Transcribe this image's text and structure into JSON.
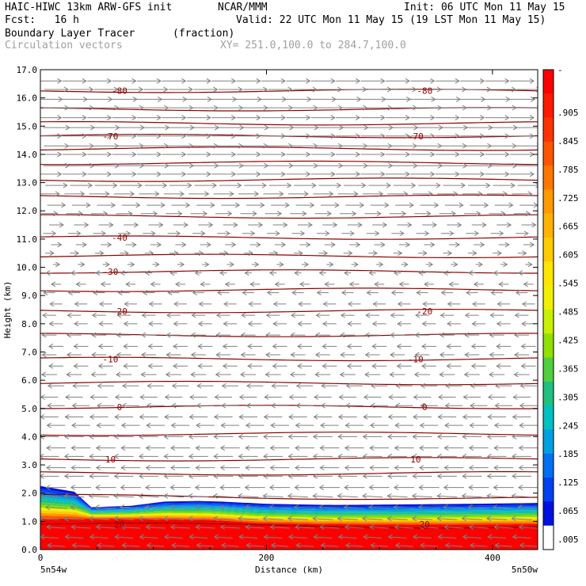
{
  "header": {
    "title": "HAIC-HIWC 13km ARW-GFS init",
    "org": "NCAR/MMM",
    "init": "Init: 06 UTC Mon 11 May 15",
    "fcst": "Fcst:   16 h",
    "valid": "Valid: 22 UTC Mon 11 May 15 (19 LST Mon 11 May 15)",
    "field": "Boundary Layer Tracer",
    "units": "(fraction)",
    "vectors": "Circulation vectors",
    "xy": "XY= 251.0,100.0 to 284.7,100.0"
  },
  "chart_data": {
    "type": "heatmap",
    "title": "Boundary Layer Tracer",
    "xlabel": "Distance (km)",
    "ylabel": "Height (km)",
    "xlim": [
      0,
      440
    ],
    "ylim": [
      0,
      17
    ],
    "x_ticks": [
      "0",
      "200",
      "400"
    ],
    "y_ticks": [
      "0.0",
      "1.0",
      "2.0",
      "3.0",
      "4.0",
      "5.0",
      "6.0",
      "7.0",
      "8.0",
      "9.0",
      "10.0",
      "11.0",
      "12.0",
      "13.0",
      "14.0",
      "15.0",
      "16.0",
      "17.0"
    ],
    "x_endpoints": {
      "left": "5n54w",
      "right": "5n50w"
    },
    "colorbar_labels": [
      "-",
      ".905",
      ".845",
      ".785",
      ".725",
      ".665",
      ".605",
      ".545",
      ".485",
      ".425",
      ".365",
      ".305",
      ".245",
      ".185",
      ".125",
      ".065",
      ".005"
    ],
    "colorbar_colors": [
      "#ff0000",
      "#ff1a00",
      "#ff3300",
      "#ff5500",
      "#ff7700",
      "#ff9900",
      "#ffb300",
      "#ffcc00",
      "#ffe600",
      "#f0f000",
      "#c8f000",
      "#90e000",
      "#50d040",
      "#20c080",
      "#00c0c0",
      "#00a0e0",
      "#0070f0",
      "#0040f0",
      "#0010e0",
      "#ffffff"
    ],
    "tracer_top_km": [
      [
        0,
        2.25
      ],
      [
        30,
        2.05
      ],
      [
        45,
        1.5
      ],
      [
        80,
        1.55
      ],
      [
        110,
        1.7
      ],
      [
        140,
        1.72
      ],
      [
        160,
        1.7
      ],
      [
        200,
        1.62
      ],
      [
        260,
        1.58
      ],
      [
        320,
        1.6
      ],
      [
        380,
        1.62
      ],
      [
        440,
        1.65
      ]
    ],
    "tracer_full_top_km": [
      [
        0,
        1.1
      ],
      [
        100,
        1.08
      ],
      [
        150,
        1.05
      ],
      [
        170,
        1.0
      ],
      [
        190,
        0.95
      ],
      [
        250,
        0.9
      ],
      [
        330,
        0.88
      ],
      [
        440,
        0.9
      ]
    ],
    "isotherm_labels": [
      {
        "value": "-80",
        "h": 16.25
      },
      {
        "value": "-70",
        "h": 14.65
      },
      {
        "value": "-40",
        "h": 11.05
      },
      {
        "value": "-30",
        "h": 9.85
      },
      {
        "value": "-20",
        "h": 8.45
      },
      {
        "value": "-10",
        "h": 6.75
      },
      {
        "value": "0",
        "h": 5.05
      },
      {
        "value": "10",
        "h": 3.2
      },
      {
        "value": "20",
        "h": 0.9
      }
    ],
    "isotherm_label_x_km": [
      70,
      340
    ],
    "contour_heights_km": [
      0.9,
      1.9,
      2.7,
      3.2,
      4.1,
      5.05,
      5.9,
      6.75,
      7.6,
      8.45,
      9.2,
      9.85,
      10.4,
      11.05,
      11.8,
      12.5,
      13.1,
      13.7,
      14.2,
      14.65,
      15.1,
      15.6,
      16.25
    ],
    "wind_rows": [
      {
        "h": 16.6,
        "u": 2.0
      },
      {
        "h": 16.3,
        "u": 2.0
      },
      {
        "h": 15.95,
        "u": 2.2
      },
      {
        "h": 15.65,
        "u": 2.1
      },
      {
        "h": 15.3,
        "u": 2.0
      },
      {
        "h": 14.95,
        "u": 2.3
      },
      {
        "h": 14.65,
        "u": 2.0
      },
      {
        "h": 14.3,
        "u": 2.1
      },
      {
        "h": 14.0,
        "u": 2.0
      },
      {
        "h": 13.6,
        "u": 2.2
      },
      {
        "h": 13.3,
        "u": 2.0
      },
      {
        "h": 12.9,
        "u": 1.8
      },
      {
        "h": 12.6,
        "u": 1.6
      },
      {
        "h": 12.2,
        "u": 1.4
      },
      {
        "h": 11.9,
        "u": 1.2
      },
      {
        "h": 11.5,
        "u": 1.0
      },
      {
        "h": 11.2,
        "u": 0.8
      },
      {
        "h": 10.8,
        "u": 0.6
      },
      {
        "h": 10.5,
        "u": 0.4
      },
      {
        "h": 10.1,
        "u": 0.2
      },
      {
        "h": 9.8,
        "u": -0.2
      },
      {
        "h": 9.4,
        "u": -0.5
      },
      {
        "h": 9.1,
        "u": -0.7
      },
      {
        "h": 8.7,
        "u": -0.8
      },
      {
        "h": 8.3,
        "u": -0.9
      },
      {
        "h": 8.0,
        "u": -0.9
      },
      {
        "h": 7.6,
        "u": -1.0
      },
      {
        "h": 7.2,
        "u": -1.0
      },
      {
        "h": 6.9,
        "u": -1.0
      },
      {
        "h": 6.5,
        "u": -1.0
      },
      {
        "h": 6.2,
        "u": -1.1
      },
      {
        "h": 5.8,
        "u": -1.2
      },
      {
        "h": 5.4,
        "u": -1.3
      },
      {
        "h": 5.1,
        "u": -1.3
      },
      {
        "h": 4.7,
        "u": -1.4
      },
      {
        "h": 4.4,
        "u": -1.4
      },
      {
        "h": 4.0,
        "u": -1.5
      },
      {
        "h": 3.6,
        "u": -1.5
      },
      {
        "h": 3.3,
        "u": -1.5
      },
      {
        "h": 2.9,
        "u": -1.5
      },
      {
        "h": 2.6,
        "u": -1.5
      },
      {
        "h": 2.2,
        "u": -1.6
      },
      {
        "h": 1.9,
        "u": -1.6
      },
      {
        "h": 1.5,
        "u": -1.7
      },
      {
        "h": 1.1,
        "u": -1.6
      },
      {
        "h": 0.8,
        "u": -1.5
      },
      {
        "h": 0.45,
        "u": -1.4
      },
      {
        "h": 0.15,
        "u": -1.3
      }
    ],
    "colors": {
      "contour": "#8b0000",
      "vector": "#808080",
      "axis": "#000000"
    }
  }
}
